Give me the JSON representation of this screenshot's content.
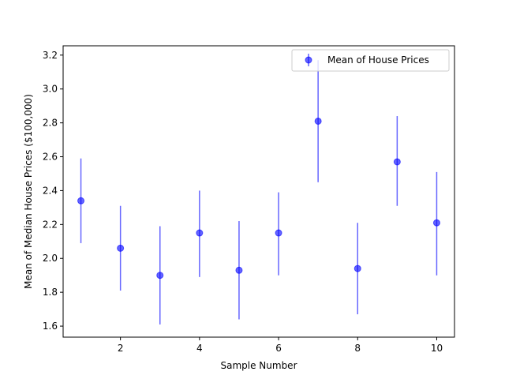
{
  "chart_data": {
    "type": "scatter",
    "title": "",
    "xlabel": "Sample Number",
    "ylabel": "Mean of Median House Prices ($100,000)",
    "xlim": [
      0.55,
      10.45
    ],
    "ylim": [
      1.535,
      3.255
    ],
    "xticks": [
      2,
      4,
      6,
      8,
      10
    ],
    "yticks": [
      1.6,
      1.8,
      2.0,
      2.2,
      2.4,
      2.6,
      2.8,
      3.0,
      3.2
    ],
    "ytick_labels": [
      "1.6",
      "1.8",
      "2.0",
      "2.2",
      "2.4",
      "2.6",
      "2.8",
      "3.0",
      "3.2"
    ],
    "grid": false,
    "legend": {
      "position": "top-right",
      "entries": [
        "Mean of House Prices"
      ]
    },
    "series": [
      {
        "name": "Mean of House Prices",
        "color": "#0000ff",
        "x": [
          1,
          2,
          3,
          4,
          5,
          6,
          7,
          8,
          9,
          10
        ],
        "y": [
          2.34,
          2.06,
          1.9,
          2.15,
          1.93,
          2.15,
          2.81,
          1.94,
          2.57,
          2.21
        ],
        "yerr_low": [
          2.09,
          1.81,
          1.61,
          1.89,
          1.64,
          1.9,
          2.45,
          1.67,
          2.31,
          1.9
        ],
        "yerr_high": [
          2.59,
          2.31,
          2.19,
          2.4,
          2.22,
          2.39,
          3.17,
          2.21,
          2.84,
          2.51
        ]
      }
    ]
  }
}
